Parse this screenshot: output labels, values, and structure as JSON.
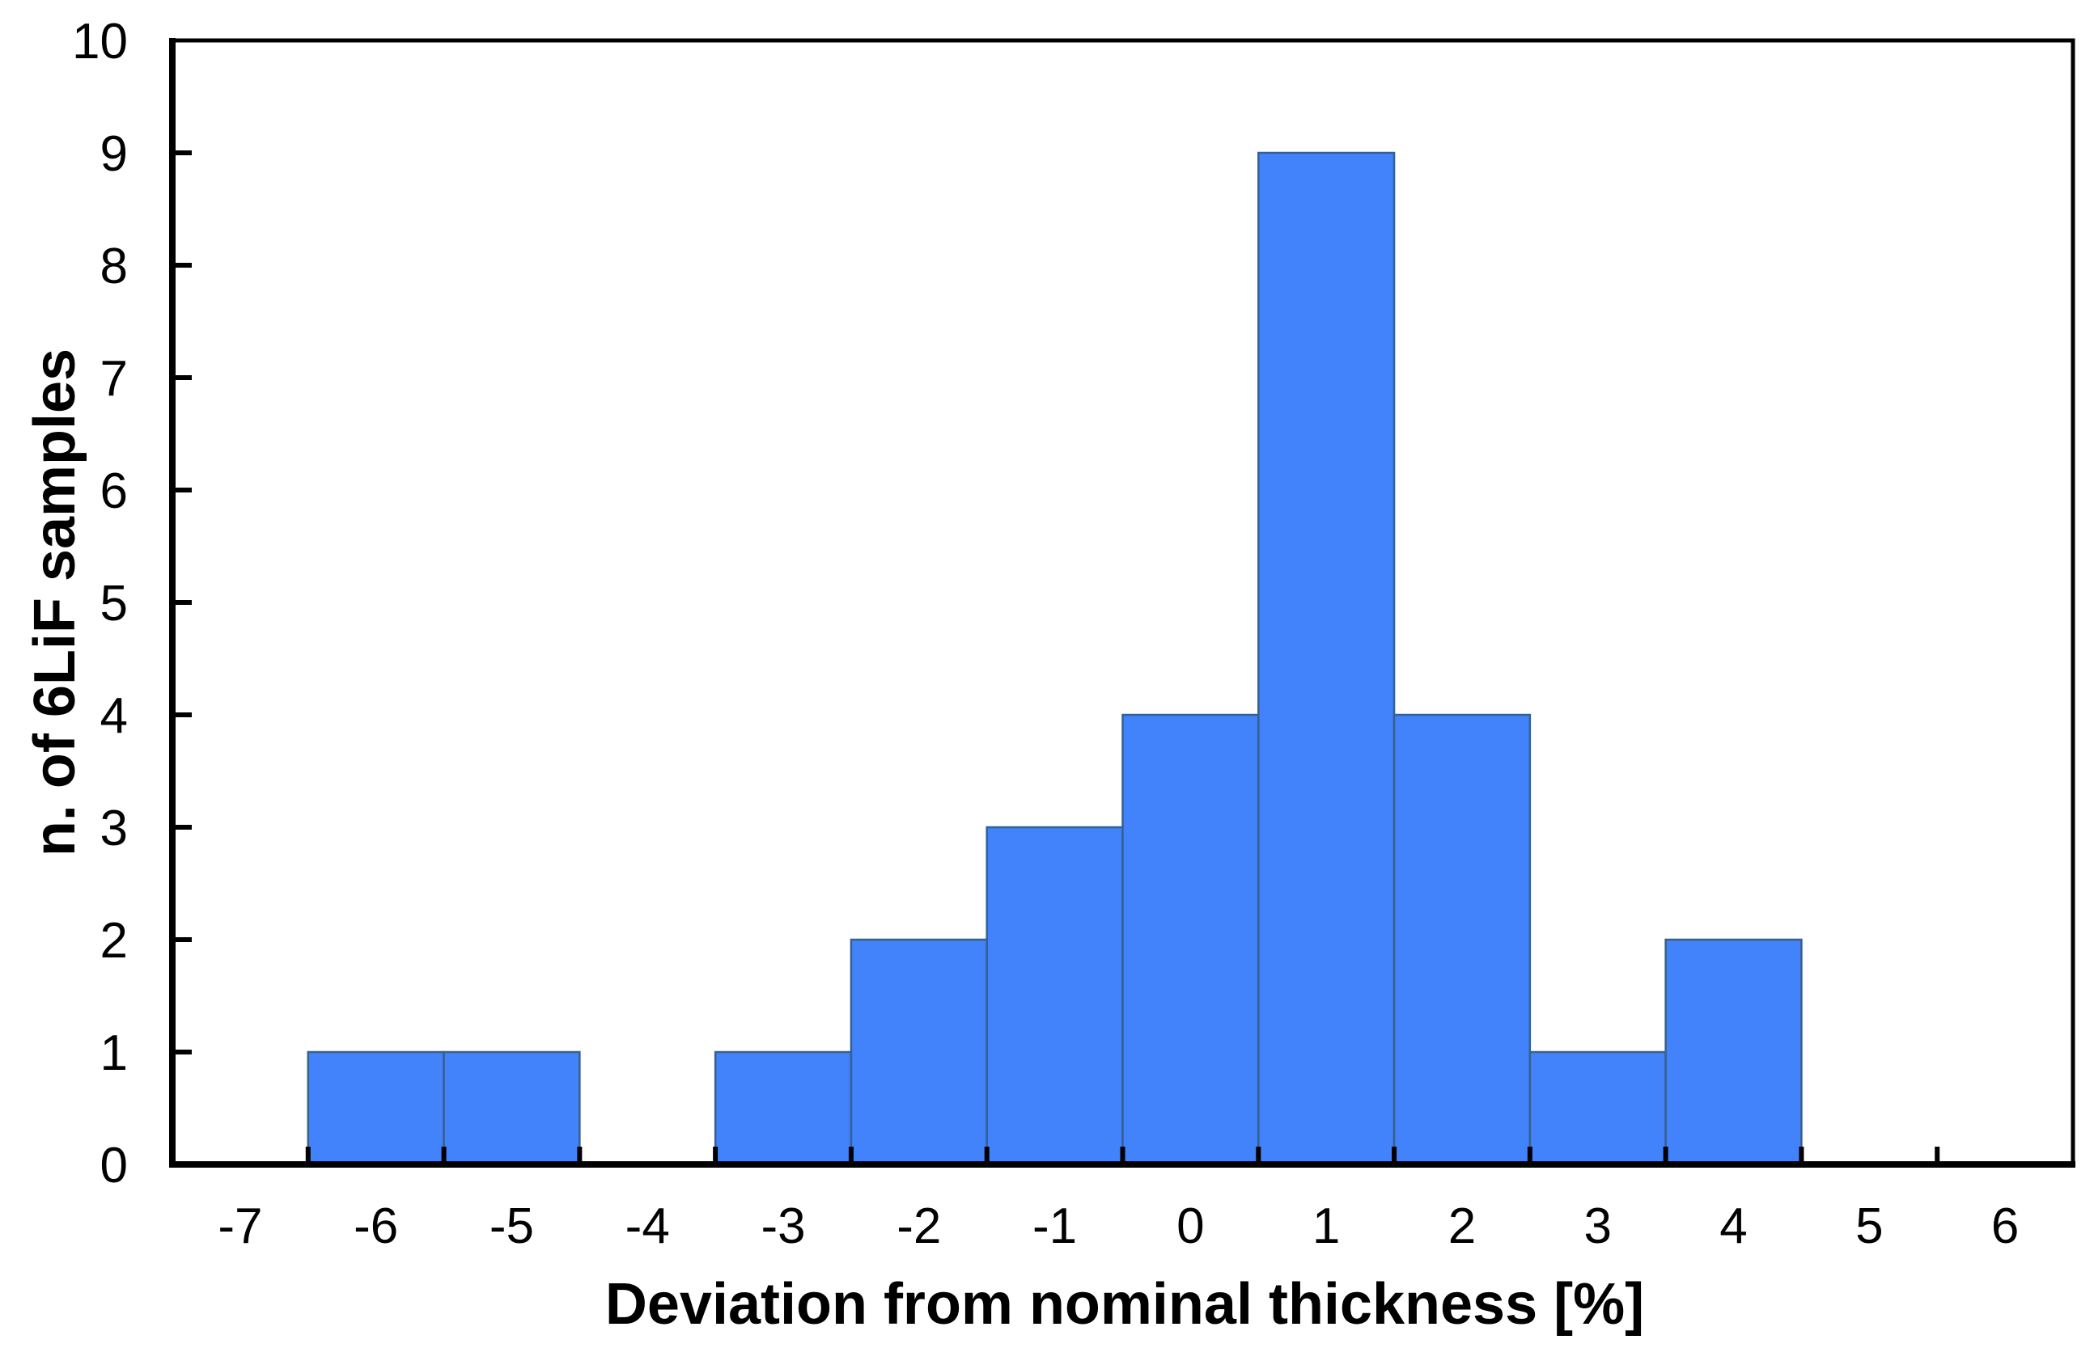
{
  "chart_data": {
    "type": "bar",
    "subtype": "histogram",
    "title": "",
    "xlabel": "Deviation from nominal thickness [%]",
    "ylabel": "n. of 6LiF samples",
    "bin_centers": [
      -7,
      -6,
      -5,
      -4,
      -3,
      -2,
      -1,
      0,
      1,
      2,
      3,
      4,
      5,
      6
    ],
    "values": [
      0,
      1,
      1,
      0,
      1,
      2,
      3,
      4,
      9,
      4,
      1,
      2,
      0,
      0
    ],
    "bin_width": 1,
    "xlim": [
      -7.5,
      6.5
    ],
    "ylim": [
      0,
      10
    ],
    "x_tick_labels": [
      "-7",
      "-6",
      "-5",
      "-4",
      "-3",
      "-2",
      "-1",
      "0",
      "1",
      "2",
      "3",
      "4",
      "5",
      "6"
    ],
    "y_tick_labels": [
      "0",
      "1",
      "2",
      "3",
      "4",
      "5",
      "6",
      "7",
      "8",
      "9",
      "10"
    ],
    "grid": "off",
    "legend": "none",
    "colors": {
      "bar_fill": "#4282FA",
      "bar_stroke": "#35618F",
      "axis": "#000000",
      "text": "#000000",
      "background": "#FFFFFF"
    }
  }
}
